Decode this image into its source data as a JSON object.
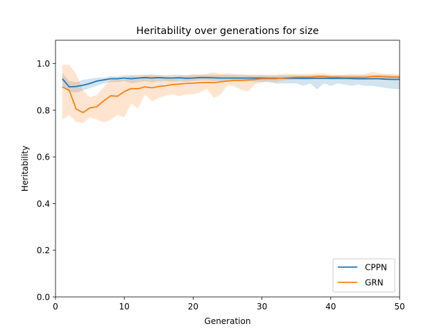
{
  "chart_data": {
    "type": "line",
    "title": "Heritability over generations for size",
    "xlabel": "Generation",
    "ylabel": "Heritability",
    "xlim": [
      0,
      50
    ],
    "ylim": [
      0,
      1.1
    ],
    "xticks": [
      0,
      10,
      20,
      30,
      40,
      50
    ],
    "xtick_labels": [
      "0",
      "10",
      "20",
      "30",
      "40",
      "50"
    ],
    "yticks": [
      0.0,
      0.2,
      0.4,
      0.6,
      0.8,
      1.0
    ],
    "ytick_labels": [
      "0.0",
      "0.2",
      "0.4",
      "0.6",
      "0.8",
      "1.0"
    ],
    "grid": false,
    "legend_position": "lower-right",
    "x": [
      1,
      2,
      3,
      4,
      5,
      6,
      7,
      8,
      9,
      10,
      11,
      12,
      13,
      14,
      15,
      16,
      17,
      18,
      19,
      20,
      21,
      22,
      23,
      24,
      25,
      26,
      27,
      28,
      29,
      30,
      31,
      32,
      33,
      34,
      35,
      36,
      37,
      38,
      39,
      40,
      41,
      42,
      43,
      44,
      45,
      46,
      47,
      48,
      49,
      50
    ],
    "series": [
      {
        "name": "CPPN",
        "color": "#1f77b4",
        "values": [
          0.935,
          0.9,
          0.902,
          0.907,
          0.915,
          0.925,
          0.93,
          0.935,
          0.935,
          0.938,
          0.935,
          0.938,
          0.94,
          0.938,
          0.94,
          0.938,
          0.938,
          0.939,
          0.937,
          0.938,
          0.94,
          0.94,
          0.939,
          0.938,
          0.938,
          0.938,
          0.938,
          0.938,
          0.938,
          0.938,
          0.937,
          0.937,
          0.937,
          0.937,
          0.937,
          0.937,
          0.937,
          0.937,
          0.937,
          0.937,
          0.937,
          0.937,
          0.936,
          0.935,
          0.935,
          0.935,
          0.935,
          0.933,
          0.932,
          0.932
        ],
        "lower": [
          0.905,
          0.88,
          0.875,
          0.885,
          0.895,
          0.905,
          0.915,
          0.92,
          0.92,
          0.925,
          0.915,
          0.92,
          0.925,
          0.92,
          0.925,
          0.925,
          0.922,
          0.925,
          0.922,
          0.925,
          0.928,
          0.928,
          0.925,
          0.925,
          0.925,
          0.925,
          0.925,
          0.925,
          0.922,
          0.922,
          0.92,
          0.915,
          0.915,
          0.915,
          0.915,
          0.905,
          0.915,
          0.89,
          0.915,
          0.905,
          0.915,
          0.91,
          0.905,
          0.91,
          0.905,
          0.905,
          0.9,
          0.895,
          0.892,
          0.89
        ],
        "upper": [
          0.96,
          0.925,
          0.92,
          0.93,
          0.935,
          0.94,
          0.94,
          0.945,
          0.945,
          0.95,
          0.95,
          0.952,
          0.952,
          0.95,
          0.952,
          0.95,
          0.952,
          0.952,
          0.95,
          0.95,
          0.952,
          0.952,
          0.952,
          0.952,
          0.952,
          0.952,
          0.95,
          0.95,
          0.95,
          0.95,
          0.95,
          0.95,
          0.95,
          0.95,
          0.95,
          0.95,
          0.95,
          0.95,
          0.95,
          0.95,
          0.95,
          0.95,
          0.95,
          0.95,
          0.95,
          0.95,
          0.952,
          0.952,
          0.95,
          0.948
        ]
      },
      {
        "name": "GRN",
        "color": "#ff7f0e",
        "values": [
          0.9,
          0.885,
          0.805,
          0.79,
          0.81,
          0.815,
          0.84,
          0.862,
          0.86,
          0.88,
          0.893,
          0.892,
          0.9,
          0.896,
          0.902,
          0.905,
          0.91,
          0.912,
          0.915,
          0.916,
          0.918,
          0.919,
          0.918,
          0.922,
          0.925,
          0.928,
          0.928,
          0.93,
          0.932,
          0.935,
          0.935,
          0.935,
          0.938,
          0.94,
          0.942,
          0.942,
          0.942,
          0.945,
          0.945,
          0.942,
          0.942,
          0.941,
          0.941,
          0.941,
          0.941,
          0.945,
          0.945,
          0.943,
          0.942,
          0.942
        ],
        "lower": [
          0.76,
          0.78,
          0.75,
          0.745,
          0.77,
          0.76,
          0.748,
          0.758,
          0.78,
          0.77,
          0.828,
          0.808,
          0.868,
          0.838,
          0.852,
          0.862,
          0.868,
          0.86,
          0.868,
          0.868,
          0.876,
          0.892,
          0.852,
          0.868,
          0.908,
          0.902,
          0.888,
          0.88,
          0.912,
          0.918,
          0.925,
          0.92,
          0.928,
          0.93,
          0.932,
          0.93,
          0.932,
          0.935,
          0.935,
          0.932,
          0.932,
          0.93,
          0.93,
          0.93,
          0.93,
          0.932,
          0.932,
          0.93,
          0.93,
          0.93
        ],
        "upper": [
          0.995,
          0.995,
          0.955,
          0.885,
          0.855,
          0.865,
          0.9,
          0.93,
          0.932,
          0.93,
          0.95,
          0.942,
          0.948,
          0.955,
          0.945,
          0.945,
          0.942,
          0.946,
          0.95,
          0.955,
          0.952,
          0.956,
          0.962,
          0.955,
          0.958,
          0.955,
          0.955,
          0.952,
          0.952,
          0.952,
          0.95,
          0.952,
          0.955,
          0.955,
          0.955,
          0.955,
          0.955,
          0.958,
          0.958,
          0.952,
          0.952,
          0.952,
          0.955,
          0.952,
          0.955,
          0.965,
          0.958,
          0.955,
          0.955,
          0.955
        ]
      }
    ]
  }
}
